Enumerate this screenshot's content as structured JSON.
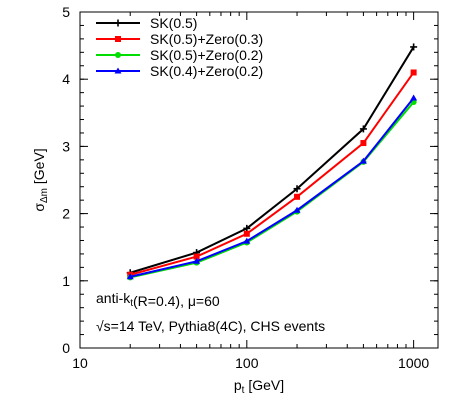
{
  "chart_data": {
    "type": "line",
    "x_scale": "log",
    "xlim": [
      10,
      1400
    ],
    "ylim": [
      0,
      5
    ],
    "xlabel": "p",
    "xlabel_sub": "t",
    "xlabel_unit": " [GeV]",
    "ylabel": "σ",
    "ylabel_sub": "Δm",
    "ylabel_unit": " [GeV]",
    "x_ticks": [
      10,
      100,
      1000
    ],
    "x_tick_labels": [
      "10",
      "100",
      "1000"
    ],
    "y_ticks": [
      0,
      1,
      2,
      3,
      4,
      5
    ],
    "y_tick_labels": [
      "0",
      "1",
      "2",
      "3",
      "4",
      "5"
    ],
    "grid": false,
    "legend_position": "top-left",
    "x": [
      20,
      50,
      100,
      200,
      500,
      1000
    ],
    "series": [
      {
        "name": "SK(0.5)",
        "color": "#000000",
        "marker": "plus",
        "values": [
          1.12,
          1.42,
          1.78,
          2.37,
          3.26,
          4.48
        ]
      },
      {
        "name": "SK(0.5)+Zero(0.3)",
        "color": "#ff0000",
        "marker": "square",
        "values": [
          1.09,
          1.36,
          1.7,
          2.25,
          3.05,
          4.1
        ]
      },
      {
        "name": "SK(0.5)+Zero(0.2)",
        "color": "#00dd00",
        "marker": "circle",
        "values": [
          1.05,
          1.27,
          1.57,
          2.03,
          2.77,
          3.66
        ]
      },
      {
        "name": "SK(0.4)+Zero(0.2)",
        "color": "#0000ff",
        "marker": "triangle",
        "values": [
          1.06,
          1.29,
          1.59,
          2.05,
          2.78,
          3.72
        ]
      }
    ],
    "annotations": [
      {
        "parts": [
          [
            "anti-k",
            ""
          ],
          [
            "t",
            "sub"
          ],
          [
            "(R=0.4), μ=60",
            ""
          ]
        ]
      },
      {
        "parts": [
          [
            "√s=14 TeV, Pythia8(4C), CHS events",
            ""
          ]
        ]
      }
    ]
  }
}
